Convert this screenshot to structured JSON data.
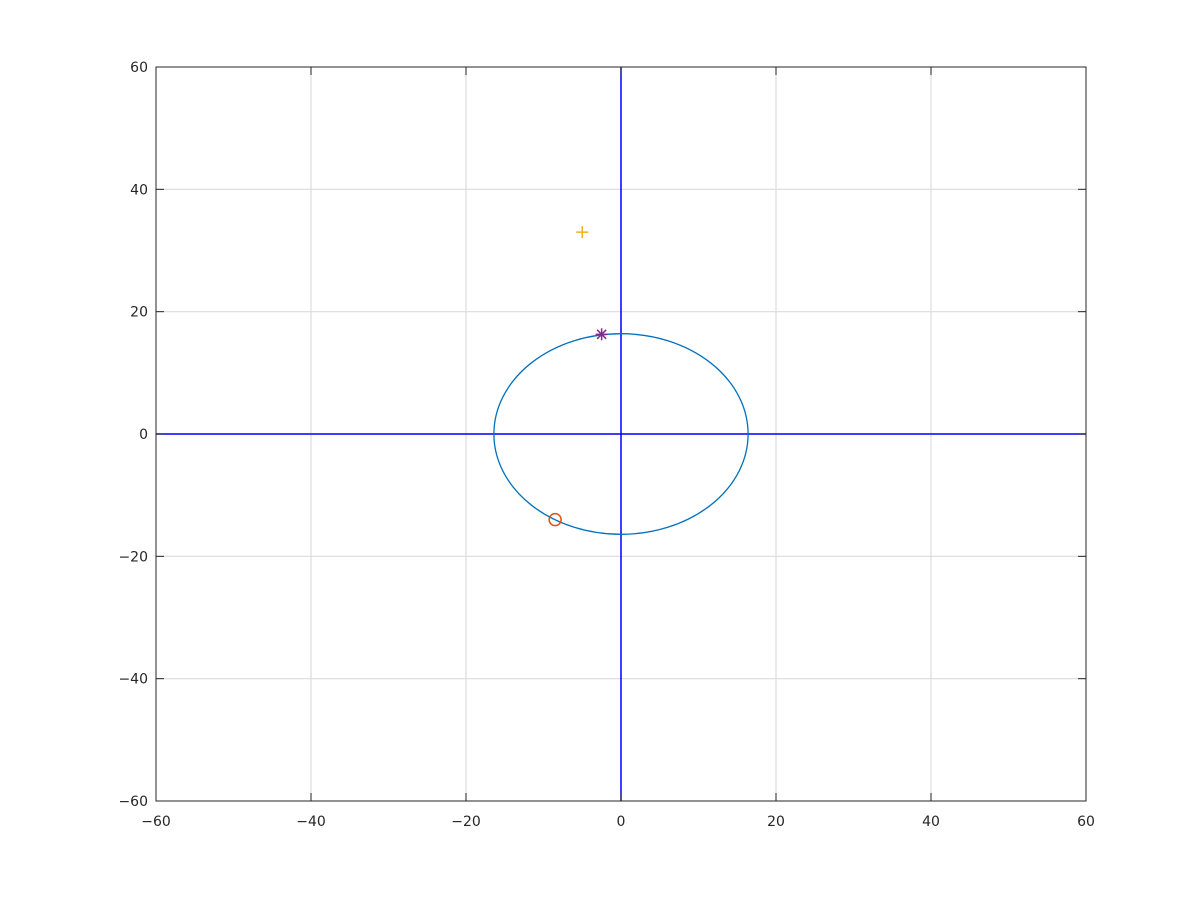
{
  "chart_data": {
    "type": "scatter",
    "title": "",
    "xlabel": "",
    "ylabel": "",
    "xlim": [
      -60,
      60
    ],
    "ylim": [
      -60,
      60
    ],
    "grid": true,
    "xticks": [
      -60,
      -40,
      -20,
      0,
      20,
      40,
      60
    ],
    "yticks": [
      -60,
      -40,
      -20,
      0,
      20,
      40,
      60
    ],
    "xtick_labels": [
      "−60",
      "−40",
      "−20",
      "0",
      "20",
      "40",
      "60"
    ],
    "ytick_labels": [
      "−60",
      "−40",
      "−20",
      "0",
      "20",
      "40",
      "60"
    ],
    "reference_lines": [
      {
        "orientation": "vertical",
        "value": 0,
        "color": "#0000ff"
      },
      {
        "orientation": "horizontal",
        "value": 0,
        "color": "#0000ff"
      }
    ],
    "series": [
      {
        "type": "circle-curve",
        "center": [
          0,
          0
        ],
        "radius": 16.4,
        "color": "#0072bd"
      },
      {
        "marker": "o",
        "color": "#d95319",
        "x": [
          -8.5
        ],
        "y": [
          -14.0
        ]
      },
      {
        "marker": "+",
        "color": "#edb120",
        "x": [
          -5.0
        ],
        "y": [
          33.0
        ]
      },
      {
        "marker": "*",
        "color": "#7e2f8e",
        "x": [
          -2.5
        ],
        "y": [
          16.3
        ]
      }
    ]
  }
}
